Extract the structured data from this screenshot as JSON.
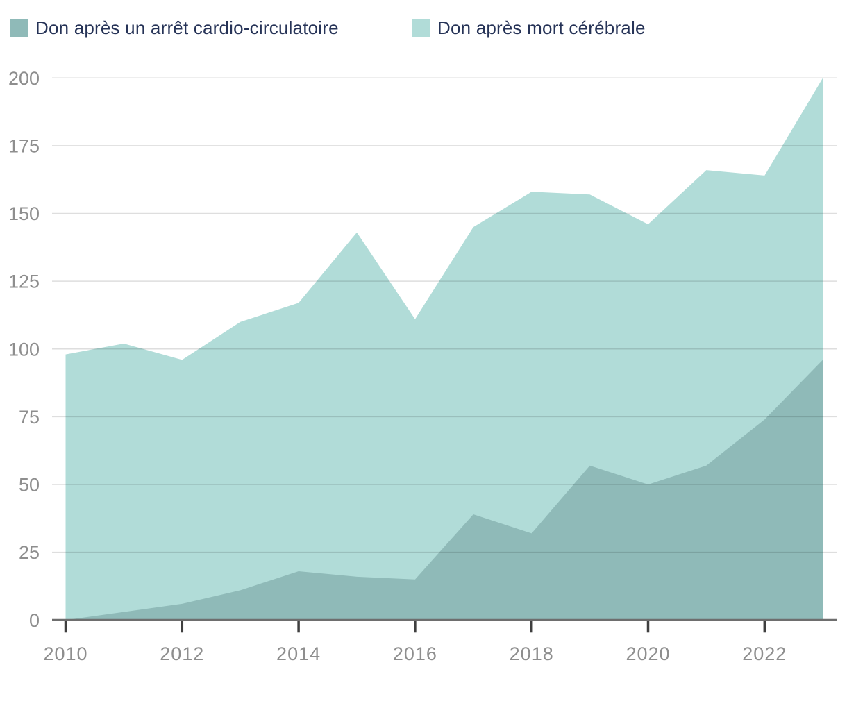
{
  "legend": [
    {
      "label": "Don après un arrêt cardio-circulatoire",
      "color": "#8FBAB8"
    },
    {
      "label": "Don après mort cérébrale",
      "color": "#B1DCD8"
    }
  ],
  "chart_data": {
    "type": "area",
    "stacked": true,
    "title": "",
    "xlabel": "",
    "ylabel": "",
    "x": [
      2010,
      2011,
      2012,
      2013,
      2014,
      2015,
      2016,
      2017,
      2018,
      2019,
      2020,
      2021,
      2022,
      2023
    ],
    "series": [
      {
        "name": "Don après un arrêt cardio-circulatoire",
        "color": "#8FBAB8",
        "values": [
          0,
          3,
          6,
          11,
          18,
          16,
          15,
          39,
          32,
          57,
          50,
          57,
          74,
          96
        ]
      },
      {
        "name": "Don après mort cérébrale",
        "color": "#B1DCD8",
        "values": [
          98,
          99,
          90,
          99,
          99,
          127,
          96,
          106,
          126,
          100,
          96,
          109,
          90,
          104
        ]
      }
    ],
    "stacked_totals": [
      98,
      102,
      96,
      110,
      117,
      143,
      111,
      145,
      158,
      157,
      146,
      166,
      164,
      200
    ],
    "ylim": [
      0,
      200
    ],
    "yticks": [
      0,
      25,
      50,
      75,
      100,
      125,
      150,
      175,
      200
    ],
    "ytick_labels": [
      "0",
      "25",
      "50",
      "75",
      "100",
      "125",
      "150",
      "175",
      "200"
    ],
    "xticks": [
      2010,
      2012,
      2014,
      2016,
      2018,
      2020,
      2022
    ],
    "xtick_labels": [
      "2010",
      "2012",
      "2014",
      "2016",
      "2018",
      "2020",
      "2022"
    ],
    "grid": true,
    "gridlines_on_top": true,
    "legend_position": "top-left",
    "colors": {
      "legend_text": "#263357",
      "tick_label": "#8E8E8E",
      "gridline": "rgba(0,0,0,0.13)",
      "axis_line": "#6E6E6E",
      "tick_mark": "#3F3F3F",
      "background": "#FFFFFF"
    }
  }
}
